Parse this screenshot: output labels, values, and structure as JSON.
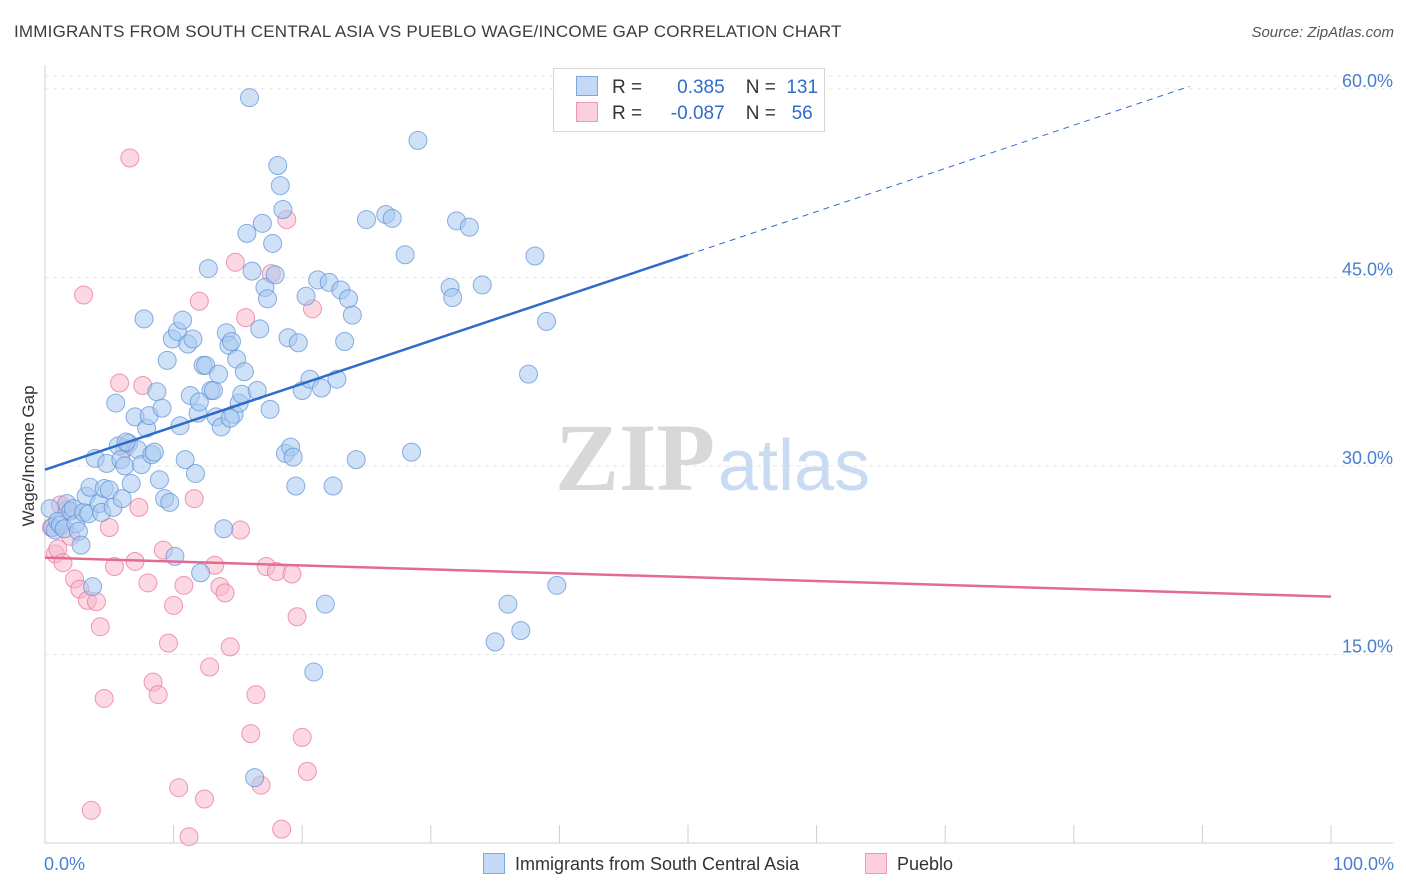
{
  "header": {
    "title": "IMMIGRANTS FROM SOUTH CENTRAL ASIA VS PUEBLO WAGE/INCOME GAP CORRELATION CHART",
    "source": "Source: ZipAtlas.com"
  },
  "watermark": {
    "zip": "ZIP",
    "atlas": "atlas"
  },
  "legend": {
    "r_label": "R =",
    "n_label": "N =",
    "rows": [
      {
        "r": "0.385",
        "n": "131",
        "color": "#a8c8f0"
      },
      {
        "r": "-0.087",
        "n": "56",
        "color": "#f7b8cb"
      }
    ]
  },
  "chart_data": {
    "type": "scatter",
    "title": "IMMIGRANTS FROM SOUTH CENTRAL ASIA VS PUEBLO WAGE/INCOME GAP CORRELATION CHART",
    "xlabel": "",
    "ylabel": "Wage/Income Gap",
    "xlim": [
      0,
      100
    ],
    "ylim": [
      0,
      61.5
    ],
    "x_tick_labels": [
      "0.0%",
      "100.0%"
    ],
    "y_ticks": [
      15,
      30,
      45,
      60
    ],
    "y_tick_labels": [
      "15.0%",
      "30.0%",
      "45.0%",
      "60.0%"
    ],
    "grid": true,
    "legend_position": "bottom-center",
    "series": [
      {
        "name": "Immigrants from South Central Asia",
        "color": "#5b8fd6",
        "fill": "#a8c8f0",
        "trend": {
          "x0": 0,
          "y0": 29.7,
          "x1": 50,
          "y1": 46.8,
          "dashed_to_x": 89,
          "dashed_to_y": 60.2
        },
        "points": [
          [
            0.4,
            26.6
          ],
          [
            0.6,
            25.1
          ],
          [
            0.8,
            24.9
          ],
          [
            1.0,
            25.6
          ],
          [
            1.2,
            25.3
          ],
          [
            1.5,
            25.0
          ],
          [
            1.7,
            27.0
          ],
          [
            2.0,
            26.4
          ],
          [
            2.2,
            26.6
          ],
          [
            2.4,
            25.4
          ],
          [
            2.6,
            24.8
          ],
          [
            2.8,
            23.7
          ],
          [
            3.0,
            26.3
          ],
          [
            3.2,
            27.6
          ],
          [
            3.4,
            26.2
          ],
          [
            3.5,
            28.3
          ],
          [
            3.7,
            20.4
          ],
          [
            3.9,
            30.6
          ],
          [
            4.2,
            27.0
          ],
          [
            4.4,
            26.3
          ],
          [
            4.6,
            28.2
          ],
          [
            4.8,
            30.2
          ],
          [
            5.0,
            28.1
          ],
          [
            5.3,
            26.7
          ],
          [
            5.5,
            35.0
          ],
          [
            5.7,
            31.6
          ],
          [
            5.9,
            30.5
          ],
          [
            6.0,
            27.4
          ],
          [
            6.2,
            30.0
          ],
          [
            6.5,
            31.8
          ],
          [
            6.7,
            28.6
          ],
          [
            7.0,
            33.9
          ],
          [
            7.2,
            31.3
          ],
          [
            7.5,
            30.1
          ],
          [
            7.7,
            41.7
          ],
          [
            7.9,
            33.0
          ],
          [
            8.1,
            34.0
          ],
          [
            8.3,
            30.9
          ],
          [
            8.5,
            31.1
          ],
          [
            8.7,
            35.9
          ],
          [
            8.9,
            28.9
          ],
          [
            9.1,
            34.6
          ],
          [
            9.3,
            27.4
          ],
          [
            9.5,
            38.4
          ],
          [
            9.7,
            27.1
          ],
          [
            9.9,
            40.1
          ],
          [
            10.1,
            22.8
          ],
          [
            10.3,
            40.7
          ],
          [
            10.5,
            33.2
          ],
          [
            10.7,
            41.6
          ],
          [
            10.9,
            30.5
          ],
          [
            11.1,
            39.7
          ],
          [
            11.3,
            35.6
          ],
          [
            11.5,
            40.1
          ],
          [
            11.7,
            29.4
          ],
          [
            11.9,
            34.2
          ],
          [
            12.1,
            21.5
          ],
          [
            12.3,
            38.0
          ],
          [
            12.5,
            38.0
          ],
          [
            12.7,
            45.7
          ],
          [
            12.9,
            36.0
          ],
          [
            13.1,
            36.0
          ],
          [
            13.3,
            33.9
          ],
          [
            13.5,
            37.3
          ],
          [
            13.7,
            33.1
          ],
          [
            13.9,
            25.0
          ],
          [
            14.1,
            40.6
          ],
          [
            14.3,
            39.6
          ],
          [
            14.5,
            39.9
          ],
          [
            14.7,
            34.1
          ],
          [
            14.9,
            38.5
          ],
          [
            15.1,
            35.0
          ],
          [
            15.3,
            35.7
          ],
          [
            15.5,
            37.5
          ],
          [
            15.7,
            48.5
          ],
          [
            15.9,
            59.3
          ],
          [
            16.1,
            45.5
          ],
          [
            16.3,
            5.2
          ],
          [
            16.5,
            36.0
          ],
          [
            16.7,
            40.9
          ],
          [
            16.9,
            49.3
          ],
          [
            17.1,
            44.2
          ],
          [
            17.3,
            43.3
          ],
          [
            17.5,
            34.5
          ],
          [
            17.7,
            47.7
          ],
          [
            17.9,
            45.2
          ],
          [
            18.1,
            53.9
          ],
          [
            18.3,
            52.3
          ],
          [
            18.5,
            50.4
          ],
          [
            18.7,
            31.0
          ],
          [
            18.9,
            40.2
          ],
          [
            19.1,
            31.5
          ],
          [
            19.3,
            30.7
          ],
          [
            19.5,
            28.4
          ],
          [
            19.7,
            39.8
          ],
          [
            20.0,
            36.0
          ],
          [
            20.3,
            43.5
          ],
          [
            20.6,
            36.9
          ],
          [
            20.9,
            13.6
          ],
          [
            21.2,
            44.8
          ],
          [
            21.5,
            36.2
          ],
          [
            21.8,
            19.0
          ],
          [
            22.1,
            44.6
          ],
          [
            22.4,
            28.4
          ],
          [
            22.7,
            36.9
          ],
          [
            23.0,
            44.0
          ],
          [
            23.3,
            39.9
          ],
          [
            23.6,
            43.3
          ],
          [
            23.9,
            42.0
          ],
          [
            24.2,
            30.5
          ],
          [
            25.0,
            49.6
          ],
          [
            26.5,
            50.0
          ],
          [
            27.0,
            49.7
          ],
          [
            28.0,
            46.8
          ],
          [
            28.5,
            31.1
          ],
          [
            29.0,
            55.9
          ],
          [
            31.5,
            44.2
          ],
          [
            31.7,
            43.4
          ],
          [
            32.0,
            49.5
          ],
          [
            33.0,
            49.0
          ],
          [
            34.0,
            44.4
          ],
          [
            35.0,
            16.0
          ],
          [
            36.0,
            19.0
          ],
          [
            37.0,
            16.9
          ],
          [
            37.6,
            37.3
          ],
          [
            38.1,
            46.7
          ],
          [
            39.0,
            41.5
          ],
          [
            39.8,
            20.5
          ],
          [
            12.0,
            35.1
          ],
          [
            6.3,
            31.9
          ],
          [
            14.4,
            33.8
          ]
        ]
      },
      {
        "name": "Pueblo",
        "color": "#e87099",
        "fill": "#f7b8cb",
        "trend": {
          "x0": 0,
          "y0": 22.7,
          "x1": 100,
          "y1": 19.6
        },
        "points": [
          [
            0.5,
            25.1
          ],
          [
            0.8,
            23.0
          ],
          [
            1.0,
            23.4
          ],
          [
            1.2,
            26.9
          ],
          [
            1.4,
            22.3
          ],
          [
            1.7,
            26.5
          ],
          [
            2.0,
            24.4
          ],
          [
            2.3,
            21.0
          ],
          [
            2.7,
            20.2
          ],
          [
            3.0,
            43.6
          ],
          [
            3.3,
            19.3
          ],
          [
            3.6,
            2.6
          ],
          [
            4.0,
            19.2
          ],
          [
            4.3,
            17.2
          ],
          [
            4.6,
            11.5
          ],
          [
            5.0,
            25.1
          ],
          [
            5.4,
            22.0
          ],
          [
            5.8,
            36.6
          ],
          [
            6.2,
            31.4
          ],
          [
            6.6,
            54.5
          ],
          [
            7.0,
            22.4
          ],
          [
            7.3,
            26.7
          ],
          [
            7.6,
            36.4
          ],
          [
            8.0,
            20.7
          ],
          [
            8.4,
            12.8
          ],
          [
            8.8,
            11.8
          ],
          [
            9.2,
            23.3
          ],
          [
            9.6,
            15.9
          ],
          [
            10.0,
            18.9
          ],
          [
            10.4,
            4.4
          ],
          [
            10.8,
            20.5
          ],
          [
            11.2,
            0.5
          ],
          [
            11.6,
            27.4
          ],
          [
            12.0,
            43.1
          ],
          [
            12.4,
            3.5
          ],
          [
            12.8,
            14.0
          ],
          [
            13.2,
            22.1
          ],
          [
            13.6,
            20.4
          ],
          [
            14.0,
            19.9
          ],
          [
            14.4,
            15.6
          ],
          [
            14.8,
            46.2
          ],
          [
            15.2,
            24.9
          ],
          [
            15.6,
            41.8
          ],
          [
            16.0,
            8.7
          ],
          [
            16.4,
            11.8
          ],
          [
            16.8,
            4.6
          ],
          [
            17.2,
            22.0
          ],
          [
            17.6,
            45.3
          ],
          [
            18.0,
            21.6
          ],
          [
            18.4,
            1.1
          ],
          [
            18.8,
            49.6
          ],
          [
            19.2,
            21.4
          ],
          [
            19.6,
            18.0
          ],
          [
            20.0,
            8.4
          ],
          [
            20.4,
            5.7
          ],
          [
            20.8,
            42.5
          ]
        ]
      }
    ]
  }
}
